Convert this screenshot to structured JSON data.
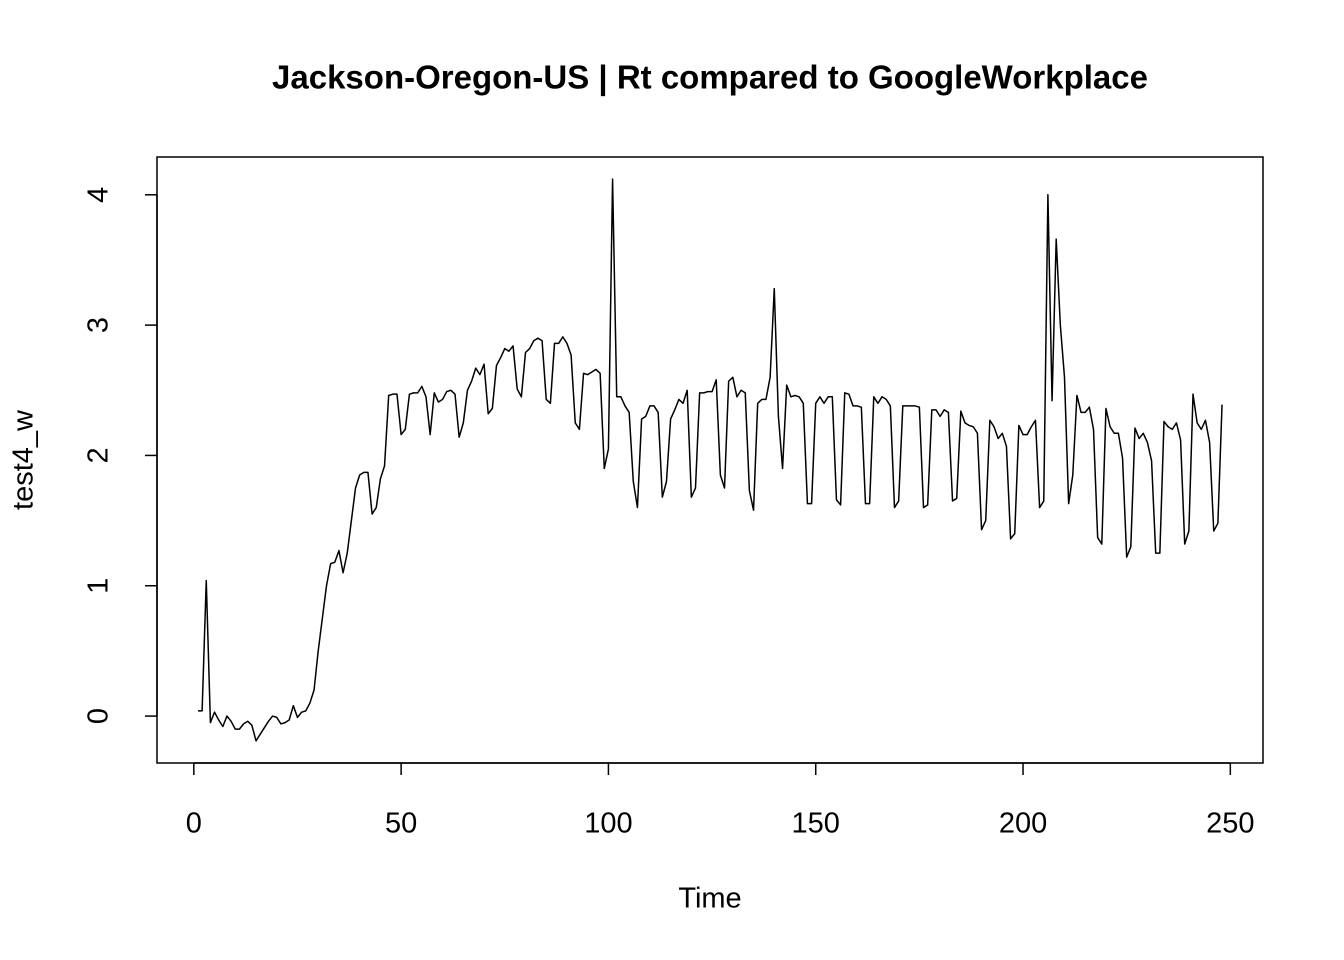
{
  "chart_data": {
    "type": "line",
    "title": "Jackson-Oregon-US | Rt compared to GoogleWorkplace",
    "x_label": "Time",
    "y_label": "test4_w",
    "x": [
      1,
      2,
      3,
      4,
      5,
      6,
      7,
      8,
      9,
      10,
      11,
      12,
      13,
      14,
      15,
      16,
      17,
      18,
      19,
      20,
      21,
      22,
      23,
      24,
      25,
      26,
      27,
      28,
      29,
      30,
      31,
      32,
      33,
      34,
      35,
      36,
      37,
      38,
      39,
      40,
      41,
      42,
      43,
      44,
      45,
      46,
      47,
      48,
      49,
      50,
      51,
      52,
      53,
      54,
      55,
      56,
      57,
      58,
      59,
      60,
      61,
      62,
      63,
      64,
      65,
      66,
      67,
      68,
      69,
      70,
      71,
      72,
      73,
      74,
      75,
      76,
      77,
      78,
      79,
      80,
      81,
      82,
      83,
      84,
      85,
      86,
      87,
      88,
      89,
      90,
      91,
      92,
      93,
      94,
      95,
      96,
      97,
      98,
      99,
      100,
      101,
      102,
      103,
      104,
      105,
      106,
      107,
      108,
      109,
      110,
      111,
      112,
      113,
      114,
      115,
      116,
      117,
      118,
      119,
      120,
      121,
      122,
      123,
      124,
      125,
      126,
      127,
      128,
      129,
      130,
      131,
      132,
      133,
      134,
      135,
      136,
      137,
      138,
      139,
      140,
      141,
      142,
      143,
      144,
      145,
      146,
      147,
      148,
      149,
      150,
      151,
      152,
      153,
      154,
      155,
      156,
      157,
      158,
      159,
      160,
      161,
      162,
      163,
      164,
      165,
      166,
      167,
      168,
      169,
      170,
      171,
      172,
      173,
      174,
      175,
      176,
      177,
      178,
      179,
      180,
      181,
      182,
      183,
      184,
      185,
      186,
      187,
      188,
      189,
      190,
      191,
      192,
      193,
      194,
      195,
      196,
      197,
      198,
      199,
      200,
      201,
      202,
      203,
      204,
      205,
      206,
      207,
      208,
      209,
      210,
      211,
      212,
      213,
      214,
      215,
      216,
      217,
      218,
      219,
      220,
      221,
      222,
      223,
      224,
      225,
      226,
      227,
      228,
      229,
      230,
      231,
      232,
      233,
      234,
      235,
      236,
      237,
      238,
      239,
      240,
      241,
      242,
      243,
      244,
      245,
      246,
      247,
      248
    ],
    "series": [
      {
        "name": "test4_w",
        "color": "#000000",
        "values": [
          0.04,
          0.04,
          1.04,
          -0.05,
          0.03,
          -0.03,
          -0.08,
          0.0,
          -0.04,
          -0.1,
          -0.1,
          -0.06,
          -0.04,
          -0.07,
          -0.19,
          -0.14,
          -0.09,
          -0.04,
          0.0,
          -0.01,
          -0.06,
          -0.05,
          -0.03,
          0.08,
          -0.01,
          0.03,
          0.04,
          0.1,
          0.2,
          0.5,
          0.75,
          1.0,
          1.17,
          1.18,
          1.27,
          1.1,
          1.25,
          1.5,
          1.75,
          1.85,
          1.87,
          1.87,
          1.55,
          1.6,
          1.82,
          1.92,
          2.46,
          2.47,
          2.47,
          2.16,
          2.2,
          2.47,
          2.48,
          2.48,
          2.53,
          2.45,
          2.16,
          2.48,
          2.41,
          2.43,
          2.49,
          2.5,
          2.47,
          2.14,
          2.25,
          2.5,
          2.57,
          2.67,
          2.62,
          2.7,
          2.32,
          2.36,
          2.69,
          2.75,
          2.82,
          2.8,
          2.84,
          2.51,
          2.45,
          2.79,
          2.82,
          2.88,
          2.9,
          2.88,
          2.43,
          2.4,
          2.86,
          2.86,
          2.91,
          2.86,
          2.77,
          2.25,
          2.2,
          2.63,
          2.62,
          2.64,
          2.66,
          2.63,
          1.9,
          2.05,
          4.12,
          2.45,
          2.45,
          2.38,
          2.33,
          1.8,
          1.6,
          2.28,
          2.3,
          2.38,
          2.38,
          2.33,
          1.68,
          1.8,
          2.28,
          2.35,
          2.43,
          2.4,
          2.5,
          1.68,
          1.75,
          2.48,
          2.48,
          2.49,
          2.49,
          2.58,
          1.85,
          1.75,
          2.57,
          2.6,
          2.45,
          2.5,
          2.48,
          1.73,
          1.58,
          2.4,
          2.43,
          2.43,
          2.6,
          3.28,
          2.3,
          1.9,
          2.54,
          2.45,
          2.46,
          2.45,
          2.4,
          1.63,
          1.63,
          2.4,
          2.45,
          2.4,
          2.45,
          2.45,
          1.66,
          1.62,
          2.48,
          2.47,
          2.38,
          2.38,
          2.37,
          1.63,
          1.63,
          2.45,
          2.4,
          2.45,
          2.43,
          2.38,
          1.6,
          1.65,
          2.38,
          2.38,
          2.38,
          2.38,
          2.37,
          1.6,
          1.62,
          2.35,
          2.35,
          2.3,
          2.35,
          2.33,
          1.65,
          1.67,
          2.34,
          2.25,
          2.23,
          2.22,
          2.17,
          1.43,
          1.5,
          2.27,
          2.22,
          2.13,
          2.17,
          2.07,
          1.36,
          1.4,
          2.23,
          2.16,
          2.16,
          2.22,
          2.27,
          1.6,
          1.65,
          4.0,
          2.42,
          3.66,
          3.0,
          2.6,
          1.63,
          1.85,
          2.46,
          2.33,
          2.33,
          2.37,
          2.2,
          1.37,
          1.32,
          2.36,
          2.22,
          2.17,
          2.17,
          1.98,
          1.22,
          1.3,
          2.21,
          2.13,
          2.17,
          2.1,
          1.96,
          1.25,
          1.25,
          2.26,
          2.22,
          2.2,
          2.25,
          2.12,
          1.32,
          1.42,
          2.47,
          2.25,
          2.2,
          2.27,
          2.1,
          1.42,
          1.48,
          2.39
        ]
      }
    ],
    "xlim": [
      -8.88,
      257.88
    ],
    "ylim": [
      -0.36,
      4.29
    ],
    "xticks": [
      0,
      50,
      100,
      150,
      200,
      250
    ],
    "yticks": [
      0,
      1,
      2,
      3,
      4
    ]
  }
}
